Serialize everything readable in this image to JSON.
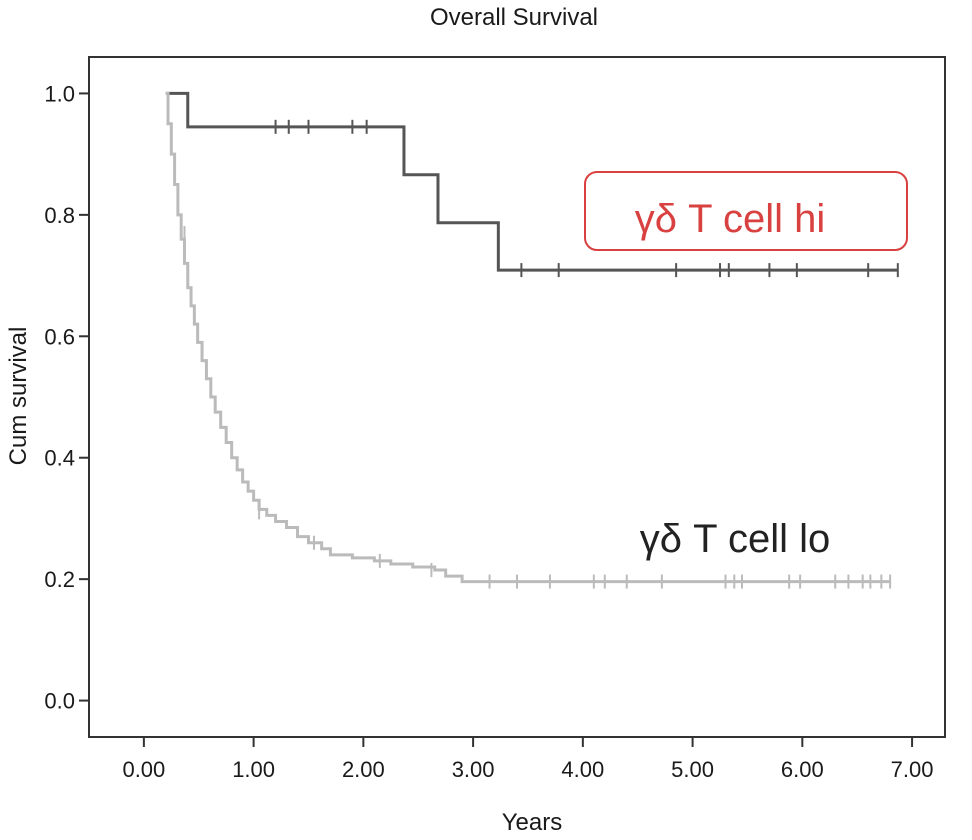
{
  "chart_data": {
    "type": "line",
    "title": "Overall Survival",
    "xlabel": "Years",
    "ylabel": "Cum survival",
    "xlim": [
      -0.5,
      7.3
    ],
    "ylim": [
      -0.06,
      1.06
    ],
    "x_ticks": [
      0,
      1,
      2,
      3,
      4,
      5,
      6,
      7
    ],
    "x_tick_labels": [
      "0.00",
      "1.00",
      "2.00",
      "3.00",
      "4.00",
      "5.00",
      "6.00",
      "7.00"
    ],
    "y_ticks": [
      0,
      0.2,
      0.4,
      0.6,
      0.8,
      1.0
    ],
    "y_tick_labels": [
      "0.0",
      "0.2",
      "0.4",
      "0.6",
      "0.8",
      "1.0"
    ],
    "grid": false,
    "series": [
      {
        "name": "γδ T cell hi",
        "color": "#555555",
        "label_color": "#d94040",
        "label_boxed": true,
        "steps": [
          [
            0.2,
            1.0
          ],
          [
            0.4,
            0.945
          ],
          [
            2.37,
            0.866
          ],
          [
            2.68,
            0.787
          ],
          [
            3.23,
            0.709
          ]
        ],
        "end_x": 6.87,
        "censored": [
          [
            1.2,
            0.945
          ],
          [
            1.32,
            0.945
          ],
          [
            1.5,
            0.945
          ],
          [
            1.9,
            0.945
          ],
          [
            2.03,
            0.945
          ],
          [
            3.44,
            0.709
          ],
          [
            3.78,
            0.709
          ],
          [
            4.85,
            0.709
          ],
          [
            5.25,
            0.709
          ],
          [
            5.33,
            0.709
          ],
          [
            5.7,
            0.709
          ],
          [
            5.95,
            0.709
          ],
          [
            6.6,
            0.709
          ],
          [
            6.87,
            0.709
          ]
        ]
      },
      {
        "name": "γδ T cell lo",
        "color": "#bbbbbb",
        "label_color": "#222222",
        "label_boxed": false,
        "steps": [
          [
            0.2,
            1.0
          ],
          [
            0.22,
            0.95
          ],
          [
            0.25,
            0.9
          ],
          [
            0.28,
            0.85
          ],
          [
            0.31,
            0.8
          ],
          [
            0.34,
            0.76
          ],
          [
            0.37,
            0.72
          ],
          [
            0.4,
            0.68
          ],
          [
            0.43,
            0.65
          ],
          [
            0.46,
            0.62
          ],
          [
            0.49,
            0.59
          ],
          [
            0.53,
            0.56
          ],
          [
            0.57,
            0.53
          ],
          [
            0.61,
            0.5
          ],
          [
            0.65,
            0.475
          ],
          [
            0.7,
            0.45
          ],
          [
            0.75,
            0.425
          ],
          [
            0.8,
            0.4
          ],
          [
            0.85,
            0.38
          ],
          [
            0.9,
            0.36
          ],
          [
            0.95,
            0.345
          ],
          [
            1.0,
            0.33
          ],
          [
            1.05,
            0.315
          ],
          [
            1.12,
            0.305
          ],
          [
            1.2,
            0.295
          ],
          [
            1.3,
            0.285
          ],
          [
            1.4,
            0.27
          ],
          [
            1.5,
            0.26
          ],
          [
            1.62,
            0.25
          ],
          [
            1.7,
            0.24
          ],
          [
            1.9,
            0.235
          ],
          [
            2.1,
            0.23
          ],
          [
            2.25,
            0.225
          ],
          [
            2.45,
            0.22
          ],
          [
            2.65,
            0.215
          ],
          [
            2.75,
            0.205
          ],
          [
            2.9,
            0.196
          ]
        ],
        "end_x": 6.8,
        "censored": [
          [
            0.37,
            0.77
          ],
          [
            1.05,
            0.31
          ],
          [
            1.55,
            0.26
          ],
          [
            2.15,
            0.23
          ],
          [
            2.62,
            0.215
          ],
          [
            3.15,
            0.196
          ],
          [
            3.4,
            0.196
          ],
          [
            3.7,
            0.196
          ],
          [
            4.1,
            0.196
          ],
          [
            4.2,
            0.196
          ],
          [
            4.4,
            0.196
          ],
          [
            4.72,
            0.196
          ],
          [
            5.3,
            0.196
          ],
          [
            5.38,
            0.196
          ],
          [
            5.45,
            0.196
          ],
          [
            5.88,
            0.196
          ],
          [
            5.98,
            0.196
          ],
          [
            6.3,
            0.196
          ],
          [
            6.42,
            0.196
          ],
          [
            6.55,
            0.196
          ],
          [
            6.62,
            0.196
          ],
          [
            6.72,
            0.196
          ],
          [
            6.8,
            0.196
          ]
        ]
      }
    ]
  }
}
